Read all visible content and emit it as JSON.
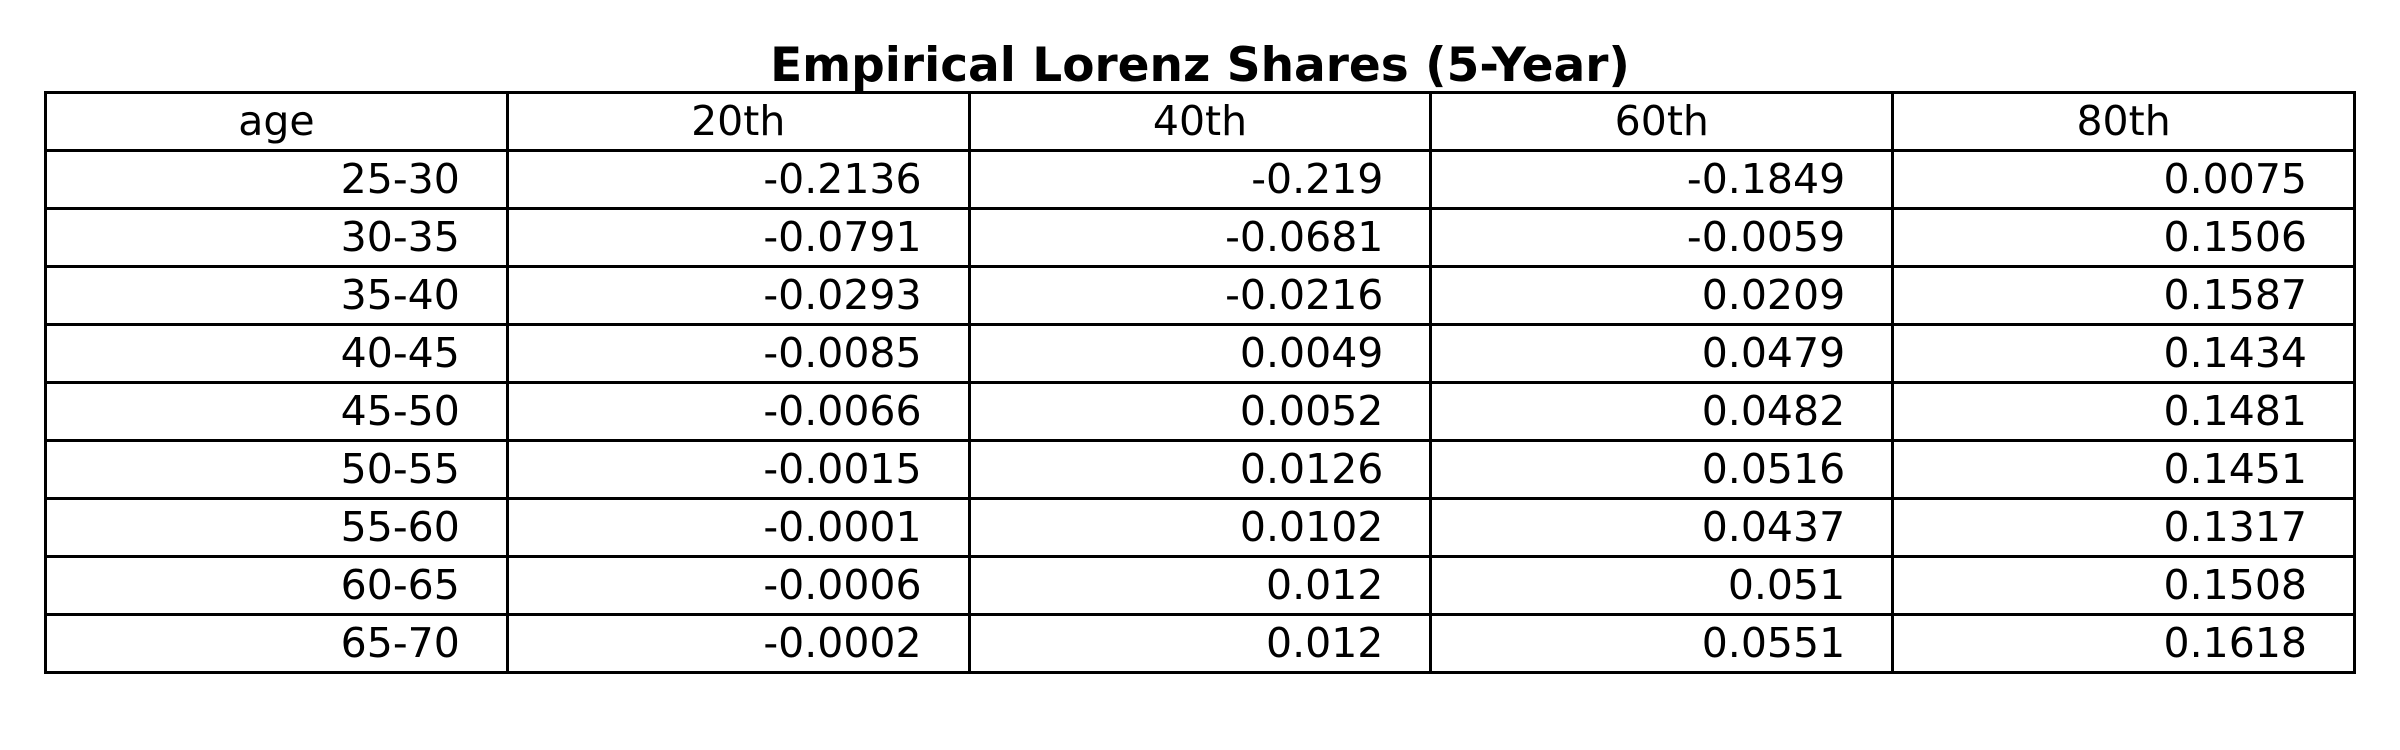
{
  "chart_data": {
    "type": "table",
    "title": "Empirical Lorenz Shares (5-Year)",
    "columns": [
      "age",
      "20th",
      "40th",
      "60th",
      "80th"
    ],
    "rows": [
      [
        "25-30",
        "-0.2136",
        "-0.219",
        "-0.1849",
        "0.0075"
      ],
      [
        "30-35",
        "-0.0791",
        "-0.0681",
        "-0.0059",
        "0.1506"
      ],
      [
        "35-40",
        "-0.0293",
        "-0.0216",
        "0.0209",
        "0.1587"
      ],
      [
        "40-45",
        "-0.0085",
        "0.0049",
        "0.0479",
        "0.1434"
      ],
      [
        "45-50",
        "-0.0066",
        "0.0052",
        "0.0482",
        "0.1481"
      ],
      [
        "50-55",
        "-0.0015",
        "0.0126",
        "0.0516",
        "0.1451"
      ],
      [
        "55-60",
        "-0.0001",
        "0.0102",
        "0.0437",
        "0.1317"
      ],
      [
        "60-65",
        "-0.0006",
        "0.012",
        "0.051",
        "0.1508"
      ],
      [
        "65-70",
        "-0.0002",
        "0.012",
        "0.0551",
        "0.1618"
      ]
    ]
  },
  "colors": {
    "text": "#000000",
    "border": "#000000",
    "background": "#ffffff"
  }
}
